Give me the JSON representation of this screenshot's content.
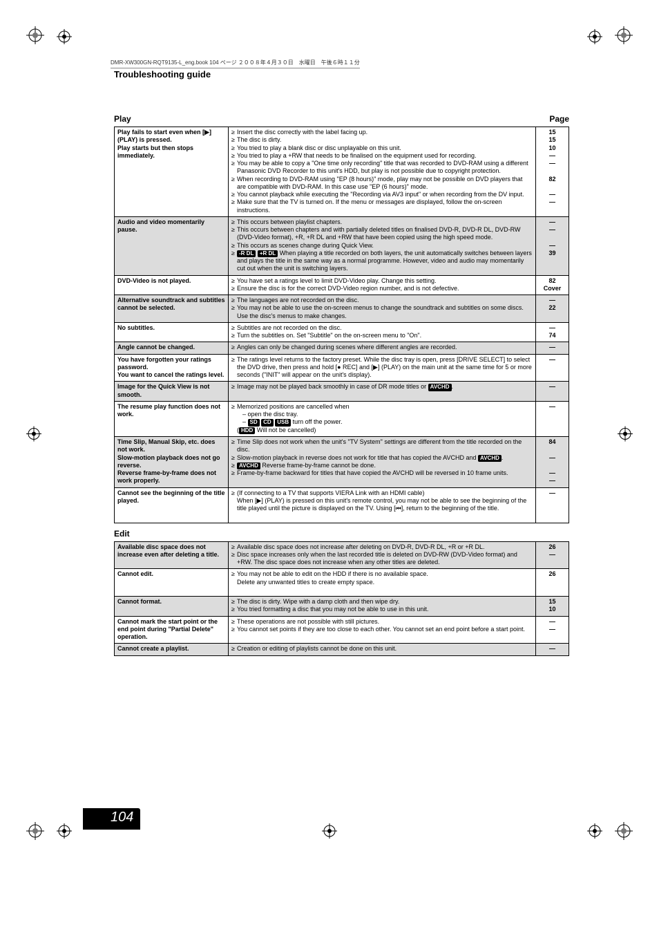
{
  "doc_info": "DMR-XW300GN-RQT9135-L_eng.book  104 ページ  ２００８年４月３０日　水曜日　午後６時１１分",
  "header": "Troubleshooting guide",
  "sections": [
    {
      "title": "Play",
      "page_label": "Page",
      "rows": [
        {
          "shade": false,
          "left": "Play fails to start even when [▶] (PLAY) is pressed.\nPlay starts but then stops immediately.",
          "items": [
            {
              "text": "Insert the disc correctly with the label facing up.",
              "page": "15"
            },
            {
              "text": "The disc is dirty.",
              "page": "15"
            },
            {
              "text": "You tried to play a blank disc or disc unplayable on this unit.",
              "page": "10"
            },
            {
              "text": "You tried to play a +RW that needs to be finalised on the equipment used for recording.",
              "page": "—"
            },
            {
              "text": "You may be able to copy a \"One time only recording\" title that was recorded to DVD-RAM using a different Panasonic DVD Recorder to this unit's HDD, but play is not possible due to copyright protection.",
              "page": "—"
            },
            {
              "text": "When recording to DVD-RAM using \"EP (8 hours)\" mode, play may not be possible on DVD players that are compatible with DVD-RAM. In this case use \"EP (6 hours)\" mode.",
              "page": "82"
            },
            {
              "text": "You cannot playback while executing the \"Recording via AV3 input\" or when recording from the DV input.",
              "page": "—"
            },
            {
              "text": "Make sure that the TV is turned on. If the menu or messages are displayed, follow the on-screen instructions.",
              "page": "—"
            }
          ]
        },
        {
          "shade": true,
          "left": "Audio and video momentarily pause.",
          "items": [
            {
              "text": "This occurs between playlist chapters.",
              "page": "—"
            },
            {
              "text": "This occurs between chapters and with partially deleted titles on finalised DVD-R, DVD-R DL, DVD-RW (DVD-Video format), +R, +R DL and +RW that have been copied using the high speed mode.",
              "page": "—"
            },
            {
              "text": "This occurs as scenes change during Quick View.",
              "page": "—"
            },
            {
              "boxes": [
                "-R DL",
                "+R DL"
              ],
              "text": " When playing a title recorded on both layers, the unit automatically switches between layers and plays the title in the same way as a normal programme. However, video and audio may momentarily cut out when the unit is switching layers.",
              "page": "39"
            }
          ]
        },
        {
          "shade": false,
          "left": "DVD-Video is not played.",
          "items": [
            {
              "text": "You have set a ratings level to limit DVD-Video play. Change this setting.",
              "page": "82"
            },
            {
              "text": "Ensure the disc is for the correct DVD-Video region number, and is not defective.",
              "page": "Cover"
            }
          ]
        },
        {
          "shade": true,
          "left": "Alternative soundtrack and subtitles cannot be selected.",
          "items": [
            {
              "text": "The languages are not recorded on the disc.",
              "page": "—"
            },
            {
              "text": "You may not be able to use the on-screen menus to change the soundtrack and subtitles on some discs. Use the disc's menus to make changes.",
              "page": "22"
            }
          ]
        },
        {
          "shade": false,
          "left": "No subtitles.",
          "items": [
            {
              "text": "Subtitles are not recorded on the disc.",
              "page": "—"
            },
            {
              "text": "Turn the subtitles on. Set \"Subtitle\" on the on-screen menu to \"On\".",
              "page": "74"
            }
          ]
        },
        {
          "shade": true,
          "left": "Angle cannot be changed.",
          "items": [
            {
              "text": "Angles can only be changed during scenes where different angles are recorded.",
              "page": "—"
            }
          ]
        },
        {
          "shade": false,
          "left": "You have forgotten your ratings password.\nYou want to cancel the ratings level.",
          "items": [
            {
              "text": "The ratings level returns to the factory preset. While the disc tray is open, press [DRIVE SELECT] to select the DVD drive, then press and hold [● REC] and [▶] (PLAY) on the main unit at the same time for 5 or more seconds (\"INIT\" will appear on the unit's display).",
              "page": "—"
            }
          ]
        },
        {
          "shade": true,
          "left": "Image for the Quick View is not smooth.",
          "items": [
            {
              "text_pre": "Image may not be played back smoothly in case of DR mode titles or ",
              "boxes": [
                "AVCHD"
              ],
              "text_post": ".",
              "page": "—"
            }
          ]
        },
        {
          "shade": false,
          "left": "The resume play function does not work.",
          "raw": true,
          "html": "<ul class='bullets'><li>Memorized positions are cancelled when<br><span class='sub-indent'>– open the disc tray.</span><br><span class='sub-indent'>– <span class='box'>SD</span> <span class='box'>CD</span> <span class='box'>USB</span> turn off the power.</span><br>(<span class='box'>HDD</span> Will not be cancelled)</li></ul>",
          "pages": [
            "—"
          ]
        },
        {
          "shade": true,
          "left": "Time Slip, Manual Skip, etc. does not work.\nSlow-motion playback does not go reverse.\nReverse frame-by-frame does not work properly.",
          "raw": true,
          "html": "<ul class='bullets'><li>Time Slip does not work when the unit's \"TV System\" settings are different from the title recorded on the disc.</li><li>Slow-motion playback in reverse does not work for title that has copied the AVCHD and <span class='box'>AVCHD</span>.</li><li><span class='box'>AVCHD</span> Reverse frame-by-frame cannot be done.</li><li>Frame-by-frame backward for titles that have copied the AVCHD will be reversed in 10 frame units.</li></ul>",
          "pages": [
            "84",
            "",
            "—",
            "",
            "—",
            "—"
          ]
        },
        {
          "shade": false,
          "left": "Cannot see the beginning of the title played.",
          "items": [
            {
              "text": "(If connecting to a TV that supports VIERA Link with an HDMI cable)\nWhen [▶] (PLAY) is pressed on this unit's remote control, you may not be able to see the beginning of the title played until the picture is displayed on the TV. Using [⏮], return to the beginning of the title.",
              "page": "—"
            }
          ]
        }
      ]
    },
    {
      "title": "Edit",
      "page_label": "",
      "rows": [
        {
          "shade": true,
          "left": "Available disc space does not increase even after deleting a title.",
          "items": [
            {
              "text": "Available disc space does not increase after deleting on DVD-R, DVD-R DL, +R or +R DL.",
              "page": "26"
            },
            {
              "text": "Disc space increases only when the last recorded title is deleted on DVD-RW (DVD-Video format) and +RW. The disc space does not increase when any other titles are deleted.",
              "page": "—"
            }
          ]
        },
        {
          "shade": false,
          "left": "Cannot edit.",
          "items": [
            {
              "text": "You may not be able to edit on the HDD if there is no available space.\nDelete any unwanted titles to create empty space.",
              "page": "26"
            }
          ]
        },
        {
          "shade": true,
          "left": "Cannot format.",
          "items": [
            {
              "text": "The disc is dirty. Wipe with a damp cloth and then wipe dry.",
              "page": "15"
            },
            {
              "text": "You tried formatting a disc that you may not be able to use in this unit.",
              "page": "10"
            }
          ]
        },
        {
          "shade": false,
          "left": "Cannot mark the start point or the end point during \"Partial Delete\" operation.",
          "items": [
            {
              "text": "These operations are not possible with still pictures.",
              "page": "—"
            },
            {
              "text": "You cannot set points if they are too close to each other. You cannot set an end point before a start point.",
              "page": "—"
            }
          ]
        },
        {
          "shade": true,
          "left": "Cannot create a playlist.",
          "items": [
            {
              "text": "Creation or editing of playlists cannot be done on this unit.",
              "page": "—"
            }
          ]
        }
      ]
    }
  ],
  "footer": {
    "rqt": "RQT9135",
    "page_number": "104"
  }
}
